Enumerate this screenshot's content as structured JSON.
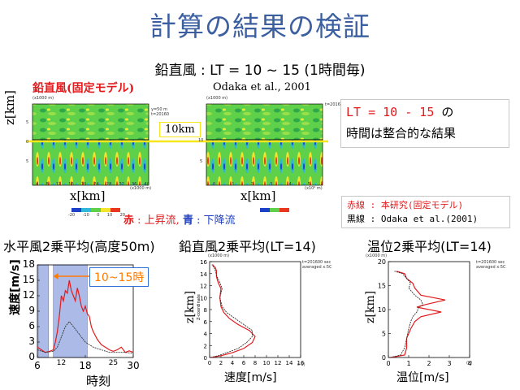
{
  "slide": {
    "title": "計算の結果の検証",
    "subtitle": "鉛直風 : LT = 10 ~ 15 (1時間毎)"
  },
  "top_panels": {
    "left_label": "鉛直風(固定モデル)",
    "right_label": "Odaka et al., 2001",
    "z_axis_label": "z[km]",
    "x_axis_label": "x[km]",
    "scale_label": "10km",
    "legend_colors_label_red": "赤",
    "legend_colors_text1": " : 上昇流, ",
    "legend_colors_label_blue": "青",
    "legend_colors_text2": " : 下降流",
    "colorbar_ticks": [
      "-20",
      "-10",
      "0",
      "10",
      "20"
    ],
    "left_xticks": [
      "4",
      "8",
      "12",
      "16",
      "20",
      "24",
      "28",
      "32",
      "36",
      "40"
    ],
    "right_xticks": [
      "0",
      "1",
      "2",
      "3",
      "4",
      "5"
    ],
    "unit_top_left": "(x1000 m)",
    "unit_top_right": "(x1000 m)",
    "unit_x_left": "(x1000 m)",
    "unit_x_right": "(x10⁴ m)",
    "left_yticks": [
      "5",
      "0",
      "5"
    ],
    "right_yticks": [
      "10",
      "5"
    ],
    "meta_left": "y=50 m\nt=20160",
    "meta_right": "t=20160"
  },
  "result_box": {
    "line1_red": "LT = 10 - 15",
    "line1_black": " の",
    "line2": "時間は整合的な結果"
  },
  "legend_box": {
    "line1_label": "赤線 : ",
    "line1_red": "本研究(固定モデル)",
    "line2": "黒線 : Odaka et al.(2001)"
  },
  "bottom_titles": {
    "left": "水平風2乗平均(高度50m)",
    "middle": "鉛直風2乗平均(LT=14)",
    "right": "温位2乗平均(LT=14)"
  },
  "bottom_left": {
    "ylabel": "速度[m/s]",
    "xlabel": "時刻",
    "annotation": "10~15時",
    "yticks": [
      "0",
      "3",
      "6",
      "9",
      "12",
      "15",
      "18"
    ],
    "xticks": [
      "6",
      "18",
      "30"
    ],
    "xticks_minor": [
      "12",
      "25"
    ]
  },
  "bottom_middle": {
    "ylabel": "z[km]",
    "ylabel_small": "Z-coordinate",
    "xlabel": "速度[m/s]",
    "unit_top": "(x1000 m)",
    "meta": "t=201600 sec\naveraged x:5C",
    "yticks": [
      "0",
      "2",
      "4",
      "6",
      "8",
      "10",
      "12",
      "14",
      "16"
    ],
    "xticks": [
      "0",
      "2",
      "4",
      "6",
      "8",
      "10",
      "12",
      "14",
      "16"
    ],
    "unit_right": "s-1)"
  },
  "bottom_right": {
    "ylabel": "z[km]",
    "xlabel": "温位[m/s]",
    "unit_top": "(x1000 m)",
    "meta": "t=201600 sec\naveraged x:5C",
    "yticks": [
      "0",
      "5",
      "10",
      "15",
      "20"
    ],
    "xticks": [
      "0",
      "1",
      "2",
      "3",
      "4"
    ],
    "unit_right": "(K)"
  },
  "colors": {
    "title": "#3b5fa0",
    "accent_red": "#e31a1c",
    "accent_blue": "#1f3fbf",
    "shade": "#8fa3dd",
    "annotation_box": "#2f6fd6",
    "annotation_text": "#ff7a00",
    "yellow": "#f6e61c"
  },
  "chart_data": [
    {
      "type": "line",
      "title": "水平風2乗平均(高度50m)",
      "xlabel": "時刻",
      "ylabel": "速度[m/s]",
      "xlim": [
        6,
        30
      ],
      "ylim": [
        0,
        18
      ],
      "series": [
        {
          "name": "red",
          "x": [
            6,
            7,
            8,
            9,
            10,
            10.5,
            11,
            11.5,
            12,
            12.5,
            13,
            13.5,
            14,
            14.5,
            15,
            15.5,
            16,
            16.5,
            17,
            17.5,
            18,
            18.5,
            19,
            19.5,
            20,
            21,
            22,
            23,
            24,
            25,
            26,
            27,
            28,
            29,
            30
          ],
          "y": [
            2,
            1.5,
            1,
            1.2,
            1.5,
            3,
            5,
            8,
            12,
            11,
            13,
            12.5,
            15,
            13,
            12,
            11,
            13.5,
            12,
            10,
            9,
            10,
            8.5,
            8,
            6,
            5,
            3.5,
            2.5,
            2,
            1.5,
            1.2,
            1.5,
            2,
            1,
            1.3,
            1
          ]
        },
        {
          "name": "black",
          "x": [
            6,
            8,
            10,
            11,
            12,
            13,
            14,
            15,
            16,
            17,
            18,
            19,
            20,
            22,
            24,
            26,
            28,
            30
          ],
          "y": [
            1.5,
            1,
            1.2,
            2,
            4,
            6,
            7,
            6,
            5,
            4,
            3,
            2.5,
            2,
            1.5,
            1,
            1,
            1,
            0.8
          ]
        }
      ],
      "shaded_ranges": [
        [
          6.2,
          8.8
        ],
        [
          10,
          18.5
        ]
      ]
    },
    {
      "type": "line",
      "title": "鉛直風2乗平均(LT=14)",
      "xlabel": "速度[m/s]",
      "ylabel": "z[km]",
      "xlim": [
        0,
        16
      ],
      "ylim": [
        0,
        16
      ],
      "series": [
        {
          "name": "red",
          "x": [
            0.2,
            2,
            4,
            6,
            7.5,
            8,
            7,
            5,
            3.5,
            2.5,
            2,
            1.8,
            2,
            1.5,
            1.2,
            1.2,
            1,
            0.5
          ],
          "y": [
            0,
            0.3,
            0.8,
            1.5,
            2.5,
            3.5,
            4.5,
            5.5,
            6.5,
            7.5,
            8.5,
            10,
            11.5,
            12.5,
            13.5,
            14.5,
            15,
            15.5
          ]
        },
        {
          "name": "black",
          "x": [
            0.2,
            1.5,
            3,
            5,
            6.5,
            7.5,
            7.5,
            6,
            4.5,
            3,
            2.2,
            1.8,
            2.2,
            1.8,
            1.3,
            1,
            0.8,
            0.4
          ],
          "y": [
            0,
            0.3,
            0.8,
            1.5,
            2.5,
            3.5,
            4.5,
            5.5,
            6.5,
            7.5,
            8.5,
            10,
            11.5,
            12.5,
            13.5,
            14.5,
            15,
            15.5
          ]
        }
      ]
    },
    {
      "type": "line",
      "title": "温位2乗平均(LT=14)",
      "xlabel": "温位[m/s]",
      "ylabel": "z[km]",
      "xlim": [
        0,
        4
      ],
      "ylim": [
        0,
        20
      ],
      "series": [
        {
          "name": "red",
          "x": [
            0.1,
            0.8,
            0.9,
            0.9,
            1.1,
            1.3,
            1.6,
            2.6,
            1.4,
            1.8,
            2.8,
            1.6,
            1.3,
            1.2,
            0.9,
            0.8,
            0.4
          ],
          "y": [
            0,
            0.5,
            2,
            4,
            6,
            7.5,
            8.5,
            9.5,
            10.5,
            11,
            12,
            13,
            14.5,
            15.5,
            16.5,
            17.5,
            18
          ]
        },
        {
          "name": "black",
          "x": [
            0.1,
            0.6,
            0.8,
            0.9,
            1,
            1.1,
            1.2,
            1.4,
            1.5,
            1.7,
            1.6,
            1.3,
            1,
            1.1,
            0.9,
            0.7,
            0.3
          ],
          "y": [
            0,
            0.5,
            2,
            4,
            6,
            7.5,
            8.5,
            9.5,
            10.5,
            11,
            12,
            13,
            14.5,
            15.5,
            16.5,
            17.5,
            18
          ]
        }
      ]
    }
  ]
}
